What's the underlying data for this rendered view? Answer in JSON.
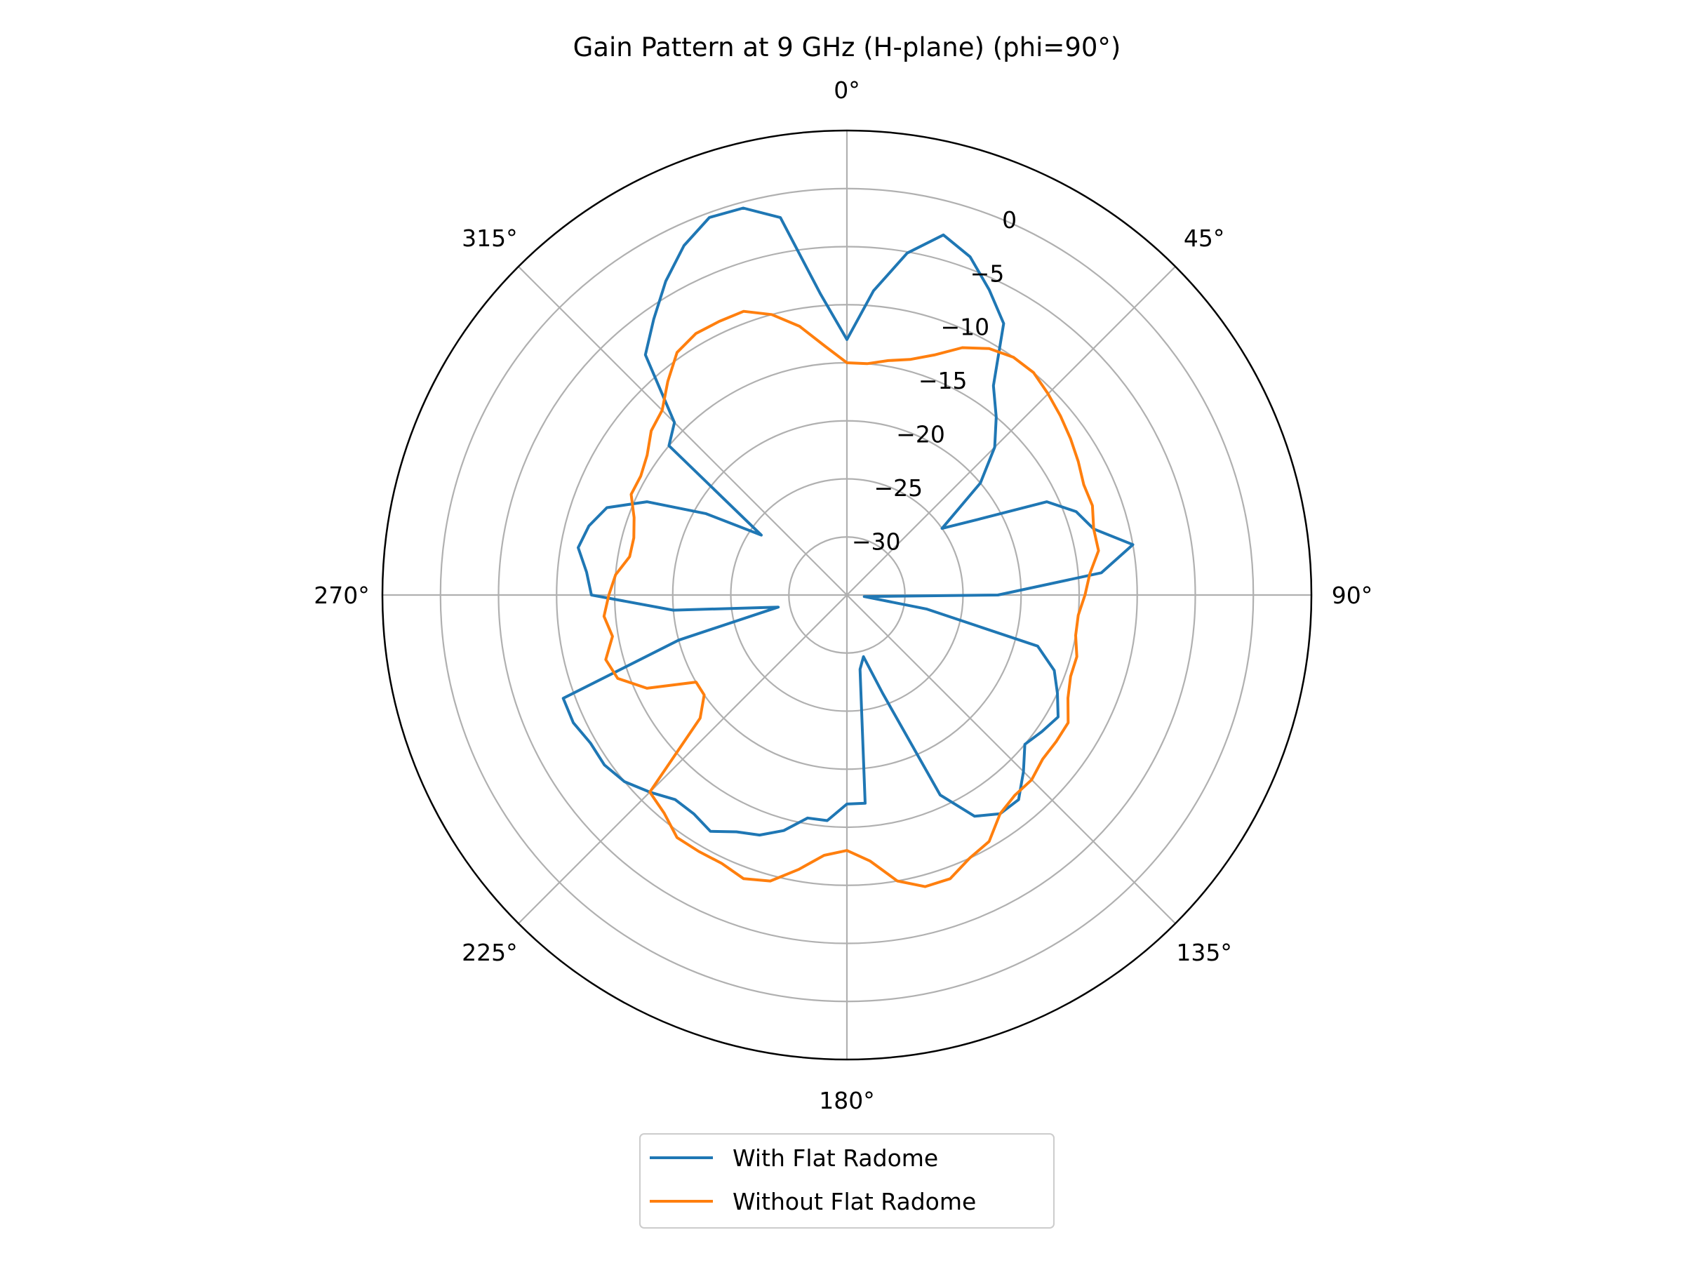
{
  "chart_data": {
    "type": "line",
    "projection": "polar",
    "title": "Gain Pattern at 9 GHz (H-plane) (phi=90°)",
    "theta_zero_location": "top",
    "theta_direction": "clockwise",
    "theta_ticks": [
      0,
      45,
      90,
      135,
      180,
      225,
      270,
      315
    ],
    "theta_tick_labels": [
      "0°",
      "45°",
      "90°",
      "135°",
      "180°",
      "225°",
      "270°",
      "315°"
    ],
    "r_ticks": [
      -30,
      -25,
      -20,
      -15,
      -10,
      -5,
      0
    ],
    "r_tick_labels": [
      "−30",
      "−25",
      "−20",
      "−15",
      "−10",
      "−5",
      "0"
    ],
    "r_tick_label_angle": 22.5,
    "rlim": [
      -35,
      5
    ],
    "grid": true,
    "legend_placement": "below",
    "theta": [
      0,
      5,
      10,
      15,
      20,
      25,
      30,
      35,
      40,
      45,
      50,
      55,
      60,
      65,
      70,
      75,
      80,
      85,
      90,
      95,
      100,
      105,
      110,
      115,
      120,
      125,
      130,
      135,
      140,
      145,
      150,
      155,
      160,
      165,
      170,
      175,
      180,
      185,
      190,
      195,
      200,
      205,
      210,
      215,
      220,
      225,
      230,
      235,
      240,
      245,
      250,
      255,
      260,
      265,
      270,
      275,
      280,
      285,
      290,
      295,
      300,
      305,
      310,
      315,
      320,
      325,
      330,
      335,
      340,
      345,
      350,
      355
    ],
    "series": [
      {
        "name": "With Flat Radome",
        "color": "#1f77b4",
        "values": [
          -13.0,
          -8.7,
          -5.1,
          -2.9,
          -4.0,
          -6.0,
          -8.0,
          -13.0,
          -15.0,
          -17.0,
          -20.0,
          -25.0,
          -22.0,
          -16.0,
          -14.0,
          -13.0,
          -10.0,
          -13.0,
          -22.0,
          -33.5,
          -28.0,
          -18.0,
          -16.0,
          -15.0,
          -14.0,
          -14.5,
          -15.0,
          -13.5,
          -12.0,
          -12.0,
          -13.0,
          -16.0,
          -26.0,
          -29.5,
          -28.5,
          -17.0,
          -17.0,
          -15.5,
          -15.5,
          -14.0,
          -13.0,
          -12.5,
          -11.5,
          -12.0,
          -12.0,
          -11.0,
          -10.0,
          -9.5,
          -9.5,
          -9.0,
          -9.0,
          -20.0,
          -29.0,
          -20.0,
          -13.0,
          -12.5,
          -11.5,
          -12.0,
          -13.0,
          -16.0,
          -21.0,
          -26.0,
          -15.0,
          -14.0,
          -8.0,
          -6.0,
          -3.8,
          -1.8,
          -0.4,
          -0.5,
          -2.0,
          -9.0
        ]
      },
      {
        "name": "Without Flat Radome",
        "color": "#ff7f0e",
        "values": [
          -15.0,
          -15.0,
          -14.5,
          -14.0,
          -13.0,
          -11.5,
          -10.5,
          -10.0,
          -10.0,
          -10.5,
          -11.0,
          -11.5,
          -12.0,
          -12.5,
          -12.5,
          -13.0,
          -13.0,
          -14.0,
          -14.5,
          -15.0,
          -15.0,
          -14.5,
          -14.5,
          -14.0,
          -13.0,
          -13.0,
          -13.0,
          -12.5,
          -12.5,
          -12.0,
          -10.5,
          -10.0,
          -9.0,
          -9.0,
          -10.0,
          -12.0,
          -13.0,
          -12.5,
          -11.0,
          -9.5,
          -9.0,
          -9.5,
          -9.5,
          -9.5,
          -10.5,
          -11.0,
          -18.5,
          -20.0,
          -20.0,
          -16.0,
          -14.0,
          -13.5,
          -14.5,
          -14.0,
          -14.5,
          -15.0,
          -16.0,
          -16.0,
          -15.5,
          -14.5,
          -14.5,
          -14.0,
          -13.0,
          -12.5,
          -11.0,
          -9.5,
          -9.0,
          -9.0,
          -9.0,
          -10.0,
          -11.5,
          -13.5
        ]
      }
    ]
  }
}
